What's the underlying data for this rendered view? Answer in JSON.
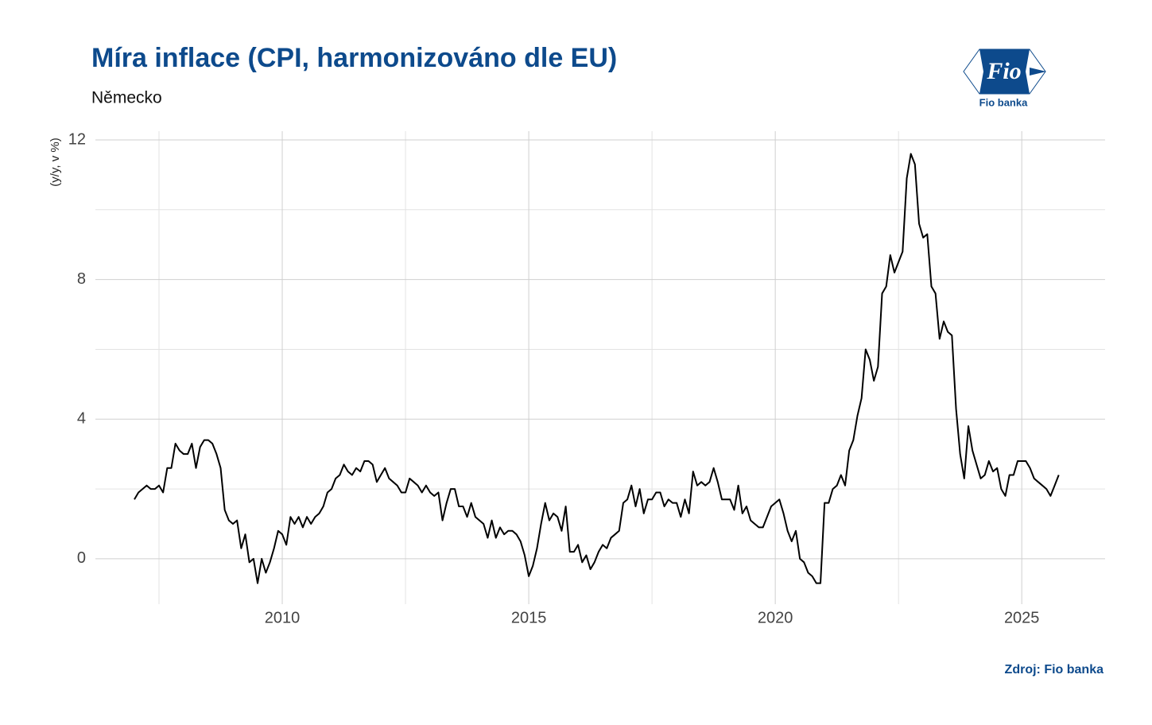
{
  "chart_data": {
    "type": "line",
    "title": "Míra inflace (CPI, harmonizováno dle EU)",
    "subtitle": "Německo",
    "y_label": "(y/y, v %)",
    "source": "Zdroj: Fio banka",
    "xlim": [
      2006.21,
      2026.69
    ],
    "ylim": [
      -1.3,
      12.25
    ],
    "xticks": [
      2010,
      2015,
      2020,
      2025
    ],
    "yticks": [
      0,
      4,
      8,
      12
    ],
    "x_minor_grid": [
      2007.5,
      2012.5,
      2017.5,
      2022.5
    ],
    "y_minor_grid": [
      2,
      6,
      10
    ],
    "grid": true,
    "x": [
      2007,
      2007.083,
      2007.167,
      2007.25,
      2007.333,
      2007.417,
      2007.5,
      2007.583,
      2007.667,
      2007.75,
      2007.833,
      2007.917,
      2008,
      2008.083,
      2008.167,
      2008.25,
      2008.333,
      2008.417,
      2008.5,
      2008.583,
      2008.667,
      2008.75,
      2008.833,
      2008.917,
      2009,
      2009.083,
      2009.167,
      2009.25,
      2009.333,
      2009.417,
      2009.5,
      2009.583,
      2009.667,
      2009.75,
      2009.833,
      2009.917,
      2010,
      2010.083,
      2010.167,
      2010.25,
      2010.333,
      2010.417,
      2010.5,
      2010.583,
      2010.667,
      2010.75,
      2010.833,
      2010.917,
      2011,
      2011.083,
      2011.167,
      2011.25,
      2011.333,
      2011.417,
      2011.5,
      2011.583,
      2011.667,
      2011.75,
      2011.833,
      2011.917,
      2012,
      2012.083,
      2012.167,
      2012.25,
      2012.333,
      2012.417,
      2012.5,
      2012.583,
      2012.667,
      2012.75,
      2012.833,
      2012.917,
      2013,
      2013.083,
      2013.167,
      2013.25,
      2013.333,
      2013.417,
      2013.5,
      2013.583,
      2013.667,
      2013.75,
      2013.833,
      2013.917,
      2014,
      2014.083,
      2014.167,
      2014.25,
      2014.333,
      2014.417,
      2014.5,
      2014.583,
      2014.667,
      2014.75,
      2014.833,
      2014.917,
      2015,
      2015.083,
      2015.167,
      2015.25,
      2015.333,
      2015.417,
      2015.5,
      2015.583,
      2015.667,
      2015.75,
      2015.833,
      2015.917,
      2016,
      2016.083,
      2016.167,
      2016.25,
      2016.333,
      2016.417,
      2016.5,
      2016.583,
      2016.667,
      2016.75,
      2016.833,
      2016.917,
      2017,
      2017.083,
      2017.167,
      2017.25,
      2017.333,
      2017.417,
      2017.5,
      2017.583,
      2017.667,
      2017.75,
      2017.833,
      2017.917,
      2018,
      2018.083,
      2018.167,
      2018.25,
      2018.333,
      2018.417,
      2018.5,
      2018.583,
      2018.667,
      2018.75,
      2018.833,
      2018.917,
      2019,
      2019.083,
      2019.167,
      2019.25,
      2019.333,
      2019.417,
      2019.5,
      2019.583,
      2019.667,
      2019.75,
      2019.833,
      2019.917,
      2020,
      2020.083,
      2020.167,
      2020.25,
      2020.333,
      2020.417,
      2020.5,
      2020.583,
      2020.667,
      2020.75,
      2020.833,
      2020.917,
      2021,
      2021.083,
      2021.167,
      2021.25,
      2021.333,
      2021.417,
      2021.5,
      2021.583,
      2021.667,
      2021.75,
      2021.833,
      2021.917,
      2022,
      2022.083,
      2022.167,
      2022.25,
      2022.333,
      2022.417,
      2022.5,
      2022.583,
      2022.667,
      2022.75,
      2022.833,
      2022.917,
      2023,
      2023.083,
      2023.167,
      2023.25,
      2023.333,
      2023.417,
      2023.5,
      2023.583,
      2023.667,
      2023.75,
      2023.833,
      2023.917,
      2024,
      2024.083,
      2024.167,
      2024.25,
      2024.333,
      2024.417,
      2024.5,
      2024.583,
      2024.667,
      2024.75,
      2024.833,
      2024.917,
      2025,
      2025.083,
      2025.167,
      2025.25,
      2025.333,
      2025.417,
      2025.5,
      2025.583,
      2025.667,
      2025.75
    ],
    "series": [
      {
        "name": "Německo",
        "color": "#000000",
        "values": [
          1.7,
          1.9,
          2.0,
          2.1,
          2.0,
          2.0,
          2.1,
          1.9,
          2.6,
          2.6,
          3.3,
          3.1,
          3.0,
          3.0,
          3.3,
          2.6,
          3.2,
          3.4,
          3.4,
          3.3,
          3.0,
          2.6,
          1.4,
          1.1,
          1.0,
          1.1,
          0.3,
          0.7,
          -0.1,
          0.0,
          -0.7,
          0.0,
          -0.4,
          -0.1,
          0.3,
          0.8,
          0.7,
          0.4,
          1.2,
          1.0,
          1.2,
          0.9,
          1.2,
          1.0,
          1.2,
          1.3,
          1.5,
          1.9,
          2.0,
          2.3,
          2.4,
          2.7,
          2.5,
          2.4,
          2.6,
          2.5,
          2.8,
          2.8,
          2.7,
          2.2,
          2.4,
          2.6,
          2.3,
          2.2,
          2.1,
          1.9,
          1.9,
          2.3,
          2.2,
          2.1,
          1.9,
          2.1,
          1.9,
          1.8,
          1.9,
          1.1,
          1.6,
          2.0,
          2.0,
          1.5,
          1.5,
          1.2,
          1.6,
          1.2,
          1.1,
          1.0,
          0.6,
          1.1,
          0.6,
          0.9,
          0.7,
          0.8,
          0.8,
          0.7,
          0.5,
          0.1,
          -0.5,
          -0.2,
          0.3,
          1.0,
          1.6,
          1.1,
          1.3,
          1.2,
          0.8,
          1.5,
          0.2,
          0.2,
          0.4,
          -0.1,
          0.1,
          -0.3,
          -0.1,
          0.2,
          0.4,
          0.3,
          0.6,
          0.7,
          0.8,
          1.6,
          1.7,
          2.1,
          1.5,
          2.0,
          1.3,
          1.7,
          1.7,
          1.9,
          1.9,
          1.5,
          1.7,
          1.6,
          1.6,
          1.2,
          1.7,
          1.3,
          2.5,
          2.1,
          2.2,
          2.1,
          2.2,
          2.6,
          2.2,
          1.7,
          1.7,
          1.7,
          1.4,
          2.1,
          1.3,
          1.5,
          1.1,
          1.0,
          0.9,
          0.9,
          1.2,
          1.5,
          1.6,
          1.7,
          1.3,
          0.8,
          0.5,
          0.8,
          0.0,
          -0.1,
          -0.4,
          -0.5,
          -0.7,
          -0.7,
          1.6,
          1.6,
          2.0,
          2.1,
          2.4,
          2.1,
          3.1,
          3.4,
          4.1,
          4.6,
          6.0,
          5.7,
          5.1,
          5.5,
          7.6,
          7.8,
          8.7,
          8.2,
          8.5,
          8.8,
          10.9,
          11.6,
          11.3,
          9.6,
          9.2,
          9.3,
          7.8,
          7.6,
          6.3,
          6.8,
          6.5,
          6.4,
          4.3,
          3.0,
          2.3,
          3.8,
          3.1,
          2.7,
          2.3,
          2.4,
          2.8,
          2.5,
          2.6,
          2.0,
          1.8,
          2.4,
          2.4,
          2.8,
          2.8,
          2.8,
          2.6,
          2.3,
          2.2,
          2.1,
          2.0,
          1.8,
          2.1,
          2.4
        ]
      }
    ]
  },
  "logo": {
    "text": "Fio",
    "caption": "Fio banka"
  }
}
